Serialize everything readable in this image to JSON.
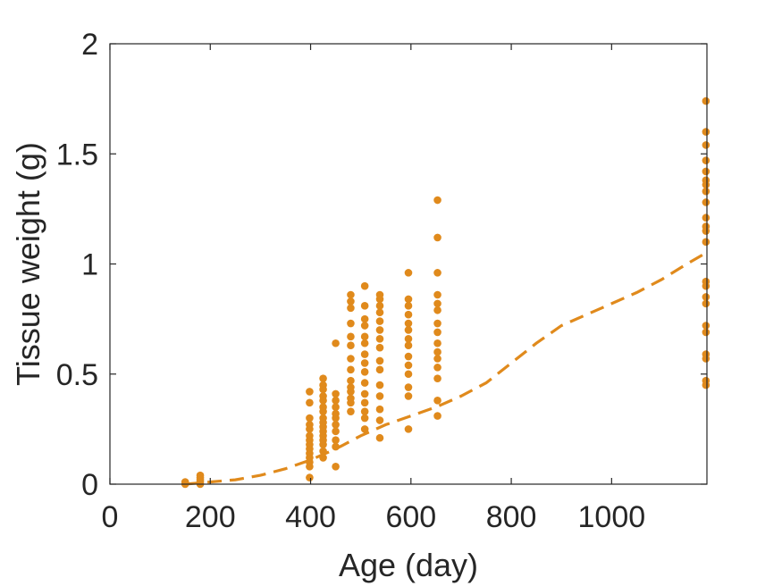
{
  "chart_data": {
    "type": "scatter",
    "xlabel": "Age (day)",
    "ylabel": "Tissue weight (g)",
    "xlim": [
      0,
      1190
    ],
    "ylim": [
      0,
      2
    ],
    "xticks": [
      0,
      200,
      400,
      600,
      800,
      1000
    ],
    "yticks": [
      0,
      0.5,
      1,
      1.5,
      2
    ],
    "xtick_labels": [
      "0",
      "200",
      "400",
      "600",
      "800",
      "1000"
    ],
    "ytick_labels": [
      "0",
      "0.5",
      "1",
      "1.5",
      "2"
    ],
    "box": true,
    "grid": false,
    "color": "#e08a1c",
    "series": [
      {
        "kind": "points",
        "points": [
          [
            150,
            0.0
          ],
          [
            150,
            0.01
          ],
          [
            180,
            0.0
          ],
          [
            180,
            0.01
          ],
          [
            180,
            0.02
          ],
          [
            180,
            0.03
          ],
          [
            180,
            0.04
          ],
          [
            398,
            0.03
          ],
          [
            398,
            0.08
          ],
          [
            398,
            0.1
          ],
          [
            398,
            0.12
          ],
          [
            398,
            0.14
          ],
          [
            398,
            0.16
          ],
          [
            398,
            0.18
          ],
          [
            398,
            0.2
          ],
          [
            398,
            0.22
          ],
          [
            398,
            0.25
          ],
          [
            398,
            0.27
          ],
          [
            398,
            0.3
          ],
          [
            398,
            0.37
          ],
          [
            398,
            0.42
          ],
          [
            425,
            0.12
          ],
          [
            425,
            0.15
          ],
          [
            425,
            0.18
          ],
          [
            425,
            0.2
          ],
          [
            425,
            0.22
          ],
          [
            425,
            0.24
          ],
          [
            425,
            0.26
          ],
          [
            425,
            0.28
          ],
          [
            425,
            0.3
          ],
          [
            425,
            0.33
          ],
          [
            425,
            0.35
          ],
          [
            425,
            0.38
          ],
          [
            425,
            0.4
          ],
          [
            425,
            0.43
          ],
          [
            425,
            0.45
          ],
          [
            425,
            0.48
          ],
          [
            450,
            0.08
          ],
          [
            450,
            0.17
          ],
          [
            450,
            0.2
          ],
          [
            450,
            0.24
          ],
          [
            450,
            0.27
          ],
          [
            450,
            0.3
          ],
          [
            450,
            0.32
          ],
          [
            450,
            0.35
          ],
          [
            450,
            0.38
          ],
          [
            450,
            0.41
          ],
          [
            450,
            0.64
          ],
          [
            480,
            0.33
          ],
          [
            480,
            0.37
          ],
          [
            480,
            0.39
          ],
          [
            480,
            0.42
          ],
          [
            480,
            0.44
          ],
          [
            480,
            0.47
          ],
          [
            480,
            0.52
          ],
          [
            480,
            0.57
          ],
          [
            480,
            0.63
          ],
          [
            480,
            0.67
          ],
          [
            480,
            0.73
          ],
          [
            480,
            0.8
          ],
          [
            480,
            0.83
          ],
          [
            480,
            0.86
          ],
          [
            508,
            0.25
          ],
          [
            508,
            0.3
          ],
          [
            508,
            0.33
          ],
          [
            508,
            0.37
          ],
          [
            508,
            0.41
          ],
          [
            508,
            0.46
          ],
          [
            508,
            0.51
          ],
          [
            508,
            0.55
          ],
          [
            508,
            0.59
          ],
          [
            508,
            0.64
          ],
          [
            508,
            0.67
          ],
          [
            508,
            0.72
          ],
          [
            508,
            0.75
          ],
          [
            508,
            0.81
          ],
          [
            508,
            0.9
          ],
          [
            538,
            0.21
          ],
          [
            538,
            0.29
          ],
          [
            538,
            0.34
          ],
          [
            538,
            0.4
          ],
          [
            538,
            0.45
          ],
          [
            538,
            0.52
          ],
          [
            538,
            0.56
          ],
          [
            538,
            0.62
          ],
          [
            538,
            0.66
          ],
          [
            538,
            0.7
          ],
          [
            538,
            0.74
          ],
          [
            538,
            0.78
          ],
          [
            538,
            0.81
          ],
          [
            538,
            0.84
          ],
          [
            538,
            0.86
          ],
          [
            595,
            0.25
          ],
          [
            595,
            0.4
          ],
          [
            595,
            0.44
          ],
          [
            595,
            0.5
          ],
          [
            595,
            0.54
          ],
          [
            595,
            0.58
          ],
          [
            595,
            0.63
          ],
          [
            595,
            0.66
          ],
          [
            595,
            0.7
          ],
          [
            595,
            0.73
          ],
          [
            595,
            0.77
          ],
          [
            595,
            0.81
          ],
          [
            595,
            0.84
          ],
          [
            595,
            0.96
          ],
          [
            653,
            0.31
          ],
          [
            653,
            0.38
          ],
          [
            653,
            0.48
          ],
          [
            653,
            0.53
          ],
          [
            653,
            0.57
          ],
          [
            653,
            0.6
          ],
          [
            653,
            0.64
          ],
          [
            653,
            0.69
          ],
          [
            653,
            0.73
          ],
          [
            653,
            0.79
          ],
          [
            653,
            0.82
          ],
          [
            653,
            0.86
          ],
          [
            653,
            0.96
          ],
          [
            653,
            1.12
          ],
          [
            653,
            1.29
          ],
          [
            1188,
            0.45
          ],
          [
            1188,
            0.47
          ],
          [
            1188,
            0.57
          ],
          [
            1188,
            0.59
          ],
          [
            1188,
            0.69
          ],
          [
            1188,
            0.72
          ],
          [
            1188,
            0.82
          ],
          [
            1188,
            0.85
          ],
          [
            1188,
            0.9
          ],
          [
            1188,
            0.92
          ],
          [
            1188,
            1.1
          ],
          [
            1188,
            1.15
          ],
          [
            1188,
            1.17
          ],
          [
            1188,
            1.21
          ],
          [
            1188,
            1.28
          ],
          [
            1188,
            1.33
          ],
          [
            1188,
            1.36
          ],
          [
            1188,
            1.38
          ],
          [
            1188,
            1.42
          ],
          [
            1188,
            1.47
          ],
          [
            1188,
            1.54
          ],
          [
            1188,
            1.6
          ],
          [
            1188,
            1.74
          ]
        ]
      },
      {
        "kind": "dashed-line",
        "points": [
          [
            150,
            0.0
          ],
          [
            200,
            0.01
          ],
          [
            250,
            0.02
          ],
          [
            300,
            0.04
          ],
          [
            350,
            0.07
          ],
          [
            400,
            0.11
          ],
          [
            450,
            0.16
          ],
          [
            500,
            0.22
          ],
          [
            550,
            0.27
          ],
          [
            600,
            0.31
          ],
          [
            650,
            0.35
          ],
          [
            700,
            0.4
          ],
          [
            750,
            0.46
          ],
          [
            800,
            0.55
          ],
          [
            850,
            0.64
          ],
          [
            900,
            0.72
          ],
          [
            950,
            0.77
          ],
          [
            1000,
            0.82
          ],
          [
            1050,
            0.87
          ],
          [
            1100,
            0.93
          ],
          [
            1150,
            1.0
          ],
          [
            1188,
            1.05
          ]
        ]
      }
    ]
  }
}
